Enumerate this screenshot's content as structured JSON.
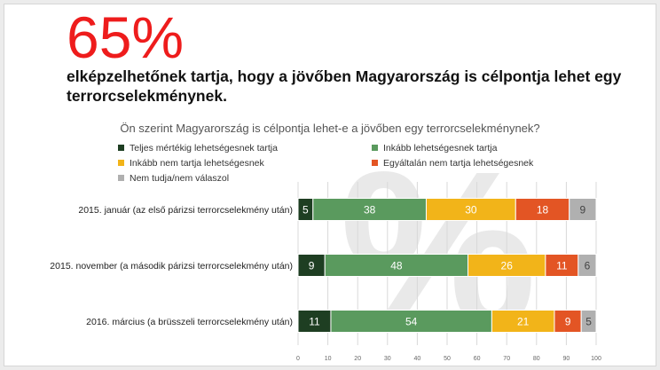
{
  "headline": {
    "big_number": "65%",
    "text": "elképzelhetőnek tartja, hogy a jövőben Magyarország is célpontja lehet egy terrorcselekménynek."
  },
  "chart_data": {
    "type": "bar",
    "orientation": "horizontal",
    "stacked": true,
    "title": "Ön szerint Magyarország is célpontja lehet-e a jövőben egy terrorcselekménynek?",
    "categories": [
      "2015. január (az első párizsi terrorcselekmény után)",
      "2015. november (a második párizsi terrorcselekmény után)",
      "2016. március (a brüsszeli terrorcselekmény után)"
    ],
    "series": [
      {
        "name": "Teljes mértékig lehetségesnek tartja",
        "color": "#1e3e22",
        "values": [
          5,
          9,
          11
        ]
      },
      {
        "name": "Inkább lehetségesnek tartja",
        "color": "#5a9a5e",
        "values": [
          38,
          48,
          54
        ]
      },
      {
        "name": "Inkább nem tartja lehetségesnek",
        "color": "#f2b419",
        "values": [
          30,
          26,
          21
        ]
      },
      {
        "name": "Egyáltalán nem tartja lehetségesnek",
        "color": "#e35524",
        "values": [
          18,
          11,
          9
        ]
      },
      {
        "name": "Nem tudja/nem válaszol",
        "color": "#b0b0b0",
        "values": [
          9,
          6,
          5
        ]
      }
    ],
    "xlim": [
      0,
      100
    ],
    "xticks": [
      "0",
      "10",
      "20",
      "30",
      "40",
      "50",
      "60",
      "70",
      "80",
      "90",
      "100"
    ],
    "grid": true,
    "legend_position": "top",
    "watermark": "%"
  }
}
